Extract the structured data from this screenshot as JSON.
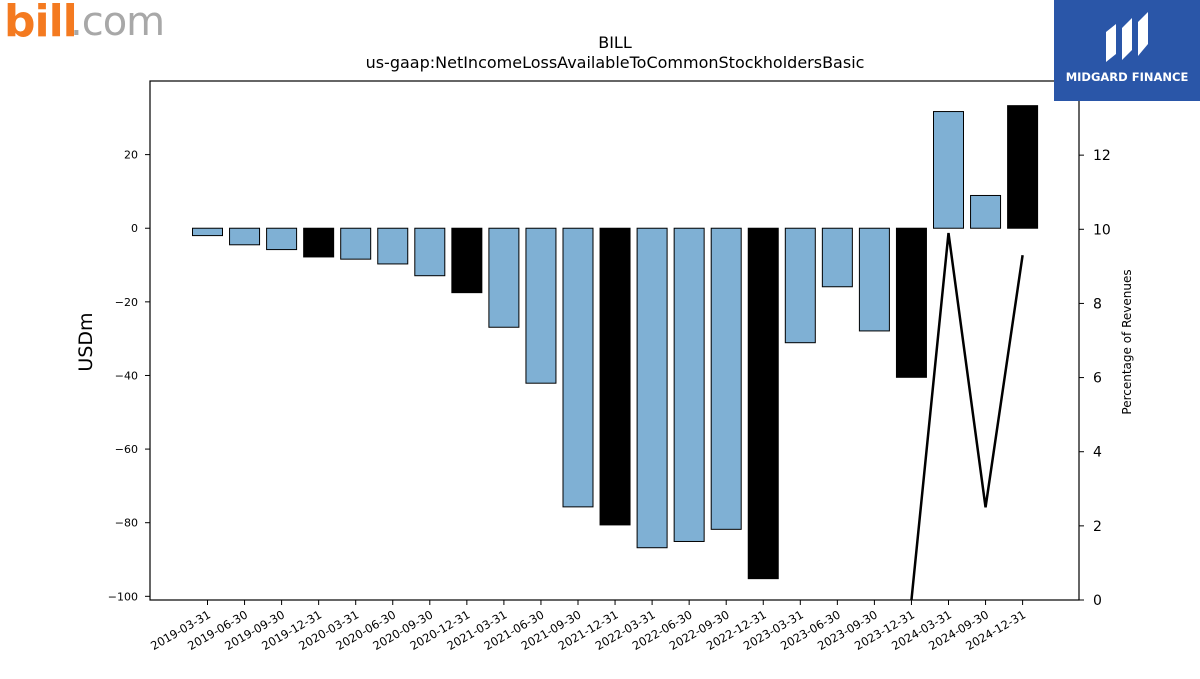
{
  "header": {
    "left_logo_text_a": "bill",
    "left_logo_text_b": ".com",
    "right_logo_text": "MIDGARD FINANCE"
  },
  "colors": {
    "bar_default": "#7fb0d4",
    "bar_highlight": "#000000",
    "line": "#000000",
    "left_logo_orange": "#f47a20",
    "left_logo_gray": "#a8a8a8",
    "right_logo_bg": "#2a56a8"
  },
  "chart_data": {
    "type": "bar",
    "title": "BILL",
    "subtitle": "us-gaap:NetIncomeLossAvailableToCommonStockholdersBasic",
    "ylabel": "USDm",
    "y2label": "Percentage of Revenues",
    "ylim": [
      -101,
      40
    ],
    "y2lim": [
      0,
      14
    ],
    "yticks": [
      20,
      0,
      -20,
      -40,
      -60,
      -80,
      -100
    ],
    "y2ticks": [
      0,
      2,
      4,
      6,
      8,
      10,
      12
    ],
    "grid": false,
    "categories": [
      "2019-03-31",
      "2019-06-30",
      "2019-09-30",
      "2019-12-31",
      "2020-03-31",
      "2020-06-30",
      "2020-09-30",
      "2020-12-31",
      "2021-03-31",
      "2021-06-30",
      "2021-09-30",
      "2021-12-31",
      "2022-03-31",
      "2022-06-30",
      "2022-09-30",
      "2022-12-31",
      "2023-03-31",
      "2023-06-30",
      "2023-09-30",
      "2023-12-31",
      "2024-03-31",
      "2024-09-30",
      "2024-12-31"
    ],
    "series": [
      {
        "kind": "bar",
        "values": [
          -2.0,
          -4.5,
          -5.8,
          -7.8,
          -8.4,
          -9.7,
          -12.9,
          -17.5,
          -26.9,
          -42.1,
          -75.7,
          -80.6,
          -86.8,
          -85.1,
          -81.8,
          -95.2,
          -31.1,
          -15.9,
          -27.9,
          -40.5,
          31.7,
          8.9,
          33.3
        ],
        "highlight": [
          false,
          false,
          false,
          true,
          false,
          false,
          false,
          true,
          false,
          false,
          false,
          true,
          false,
          false,
          false,
          true,
          false,
          false,
          false,
          true,
          false,
          false,
          true
        ]
      },
      {
        "kind": "line",
        "axis": "right",
        "points": [
          {
            "x": "2023-12-31",
            "y": 0.0
          },
          {
            "x": "2024-03-31",
            "y": 9.9
          },
          {
            "x": "2024-09-30",
            "y": 2.5
          },
          {
            "x": "2024-12-31",
            "y": 9.3
          }
        ]
      }
    ]
  }
}
